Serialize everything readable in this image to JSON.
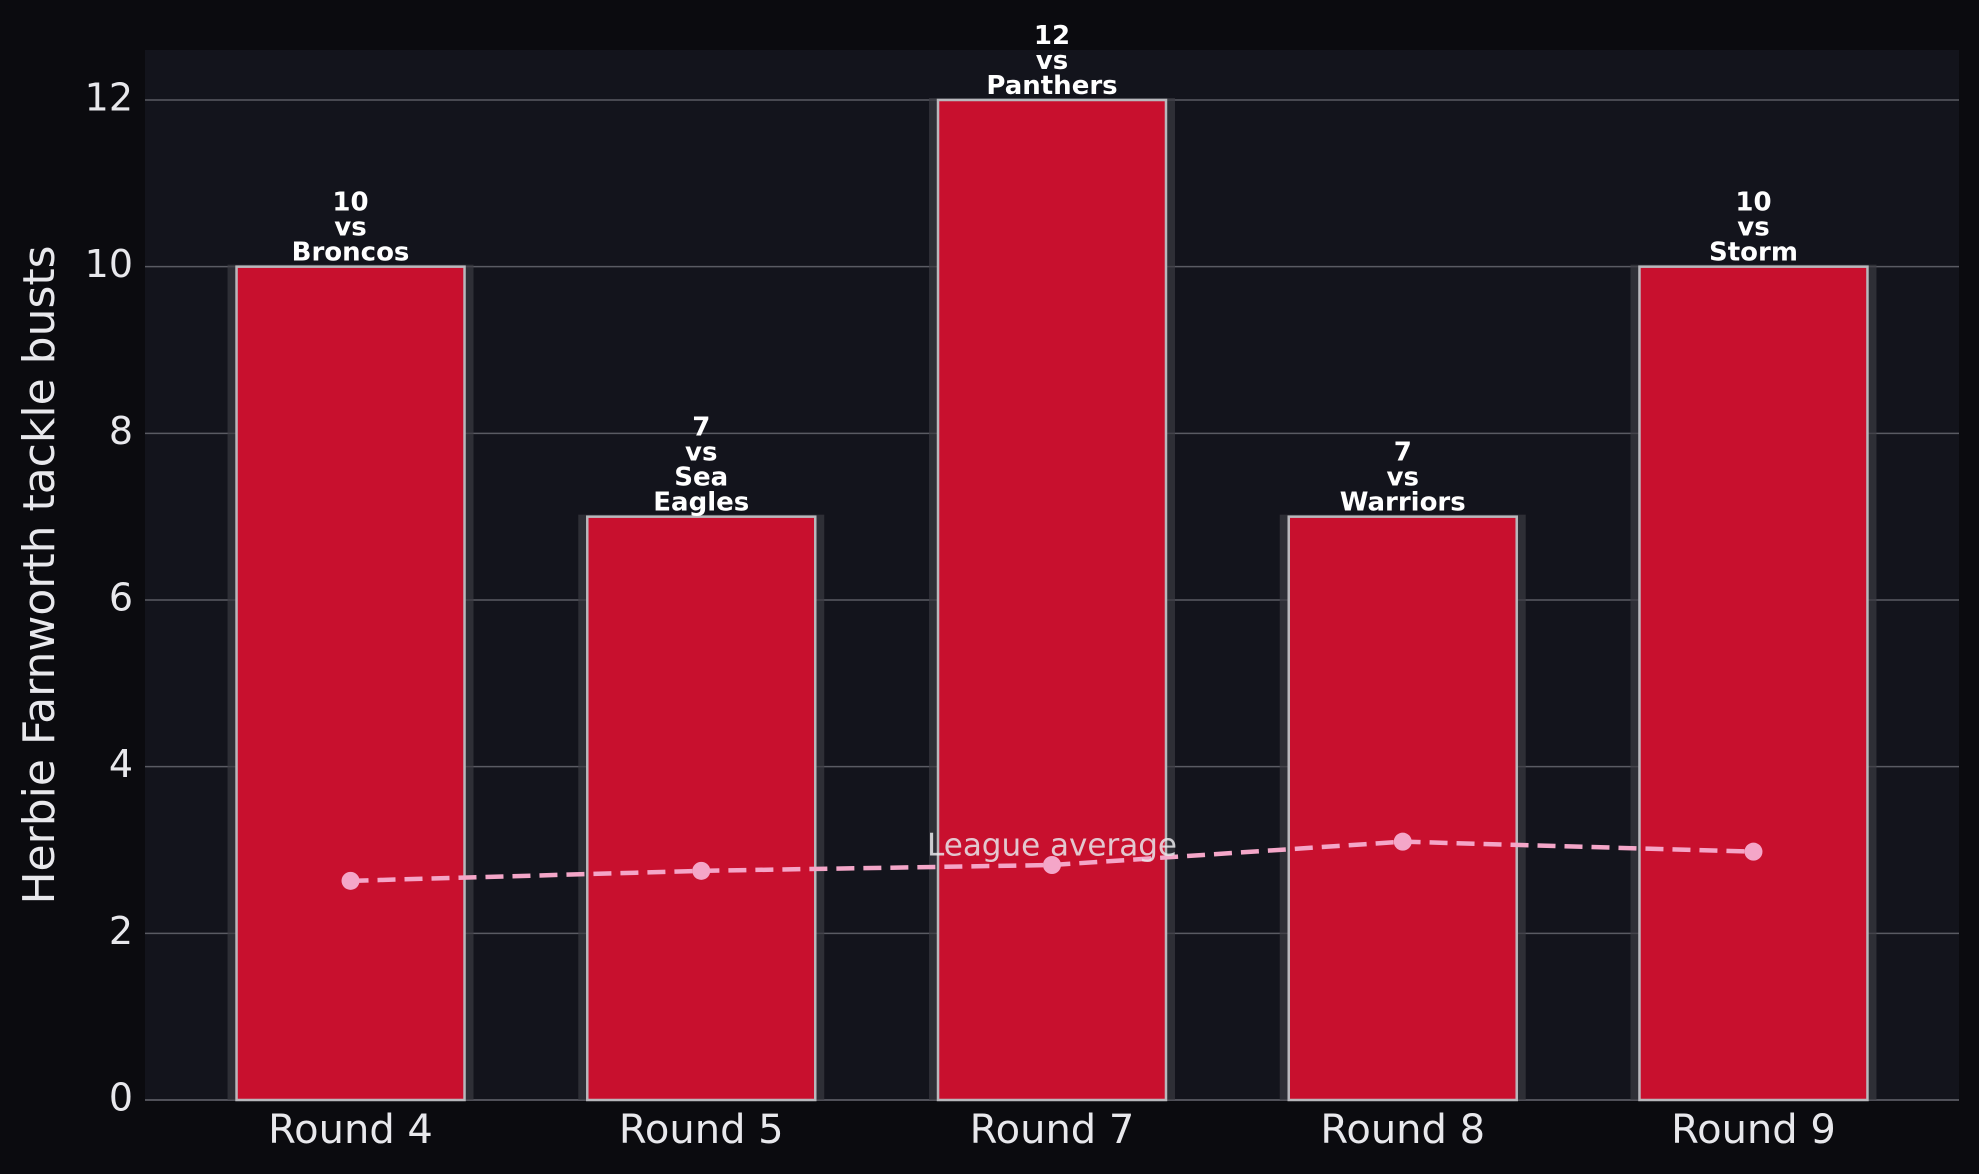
{
  "chart_data": {
    "type": "bar",
    "ylabel": "Herbie Farnworth tackle busts",
    "categories": [
      "Round 4",
      "Round 5",
      "Round 7",
      "Round 8",
      "Round 9"
    ],
    "values": [
      10,
      7,
      12,
      7,
      10
    ],
    "value_labels": [
      "10\nvs\nBroncos",
      "7\nvs\nSea\nEagles",
      "12\nvs\nPanthers",
      "7\nvs\nWarriors",
      "10\nvs\nStorm"
    ],
    "color": "#c8102e",
    "series": [
      {
        "name": "League average",
        "color": "#f4a6c8",
        "values": [
          2.63,
          2.75,
          2.82,
          3.1,
          2.98
        ]
      }
    ],
    "annotation": "League average",
    "ylim": [
      0,
      12.6
    ],
    "yticks": [
      0,
      2,
      4,
      6,
      8,
      10,
      12
    ],
    "grid": true
  }
}
